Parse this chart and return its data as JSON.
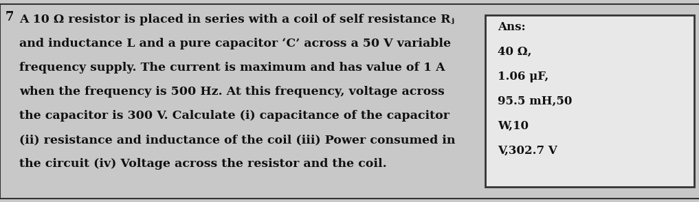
{
  "number": "7",
  "question_lines": [
    "A 10 Ω resistor is placed in series with a coil of self resistance Rⱼ",
    "and inductance L and a pure capacitor ‘C’ across a 50 V variable",
    "frequency supply. The current is maximum and has value of 1 A",
    "when the frequency is 500 Hz. At this frequency, voltage across",
    "the capacitor is 300 V. Calculate (i) capacitance of the capacitor",
    "(ii) resistance and inductance of the coil (iii) Power consumed in",
    "the circuit (iv) Voltage across the resistor and the coil."
  ],
  "ans_label": "Ans:",
  "ans_lines": [
    "40 Ω,",
    "1.06 μF,",
    "95.5 mH,50",
    "W,10",
    "V,302.7 V"
  ],
  "bg_color": "#c8c8c8",
  "box_bg": "#e8e8e8",
  "text_color": "#111111",
  "border_color": "#333333",
  "font_size_main": 12.5,
  "font_size_ans": 12.0,
  "font_size_num": 13
}
